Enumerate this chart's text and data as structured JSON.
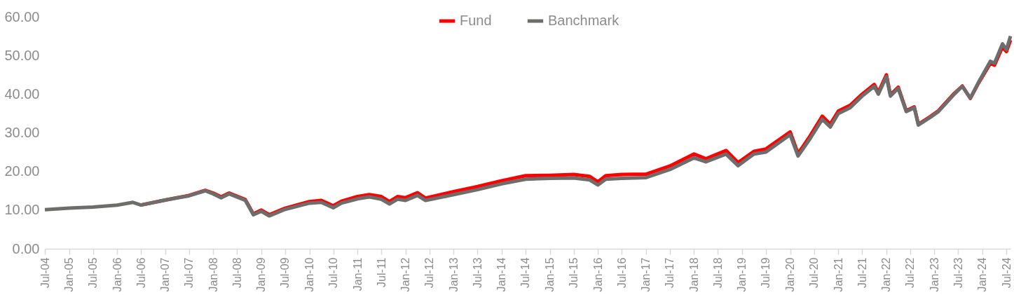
{
  "chart_data": {
    "type": "line",
    "x": [
      "2004-07",
      "2005-01",
      "2005-07",
      "2006-01",
      "2006-05",
      "2006-07",
      "2007-01",
      "2007-07",
      "2007-11",
      "2008-01",
      "2008-03",
      "2008-05",
      "2008-09",
      "2008-11",
      "2009-01",
      "2009-03",
      "2009-07",
      "2010-01",
      "2010-04",
      "2010-07",
      "2010-09",
      "2011-01",
      "2011-04",
      "2011-07",
      "2011-09",
      "2011-11",
      "2012-01",
      "2012-04",
      "2012-06",
      "2013-01",
      "2013-07",
      "2014-01",
      "2014-07",
      "2015-01",
      "2015-07",
      "2015-11",
      "2016-01",
      "2016-03",
      "2016-07",
      "2017-01",
      "2017-07",
      "2018-01",
      "2018-04",
      "2018-09",
      "2018-12",
      "2019-04",
      "2019-07",
      "2020-01",
      "2020-03",
      "2020-06",
      "2020-09",
      "2020-11",
      "2021-01",
      "2021-04",
      "2021-07",
      "2021-10",
      "2021-11",
      "2022-01",
      "2022-02",
      "2022-04",
      "2022-06",
      "2022-08",
      "2022-09",
      "2022-12",
      "2023-02",
      "2023-06",
      "2023-08",
      "2023-10",
      "2023-12",
      "2024-03",
      "2024-04",
      "2024-06",
      "2024-07",
      "2024-08"
    ],
    "series": [
      {
        "name": "Fund",
        "color": "#ff0000",
        "values": [
          null,
          null,
          null,
          null,
          null,
          11.3,
          12.6,
          13.8,
          15.1,
          14.4,
          13.4,
          14.4,
          12.7,
          9.0,
          10.0,
          8.8,
          10.5,
          12.2,
          12.5,
          11.1,
          12.3,
          13.5,
          14.0,
          13.5,
          12.2,
          13.5,
          13.2,
          14.5,
          13.1,
          14.8,
          16.1,
          17.6,
          18.9,
          19.0,
          19.2,
          18.7,
          17.3,
          18.9,
          19.2,
          19.3,
          21.4,
          24.5,
          23.3,
          25.4,
          22.3,
          25.2,
          25.8,
          30.2,
          24.6,
          29.2,
          34.3,
          32.2,
          35.6,
          37.1,
          40.0,
          42.5,
          40.4,
          45.0,
          39.8,
          41.8,
          35.7,
          36.7,
          32.2,
          34.2,
          35.7,
          40.2,
          42.1,
          38.9,
          42.8,
          48.0,
          47.5,
          52.2,
          51.0,
          54.0
        ]
      },
      {
        "name": "Banchmark",
        "color": "#6d6d6b",
        "values": [
          10.1,
          10.5,
          10.8,
          11.3,
          12.0,
          11.3,
          12.6,
          13.7,
          15.0,
          14.2,
          13.2,
          14.2,
          12.5,
          8.8,
          9.7,
          8.5,
          10.2,
          11.8,
          12.0,
          10.6,
          11.8,
          12.9,
          13.4,
          12.8,
          11.6,
          12.8,
          12.5,
          13.8,
          12.5,
          14.0,
          15.3,
          16.8,
          18.0,
          18.2,
          18.3,
          17.8,
          16.5,
          18.0,
          18.2,
          18.4,
          20.5,
          23.5,
          22.5,
          24.5,
          21.5,
          24.5,
          25.0,
          29.5,
          24.0,
          28.5,
          33.5,
          31.5,
          35.0,
          36.5,
          39.5,
          42.0,
          40.0,
          44.5,
          39.5,
          41.5,
          35.5,
          36.5,
          32.0,
          34.0,
          35.5,
          40.0,
          42.0,
          39.0,
          43.0,
          48.5,
          48.0,
          53.0,
          51.5,
          55.0
        ]
      }
    ],
    "xlim": [
      "2004-07",
      "2024-08"
    ],
    "xticks": [
      {
        "value": "2004-07",
        "label": "Jul-04"
      },
      {
        "value": "2005-01",
        "label": "Jan-05"
      },
      {
        "value": "2005-07",
        "label": "Jul-05"
      },
      {
        "value": "2006-01",
        "label": "Jan-06"
      },
      {
        "value": "2006-07",
        "label": "Jul-06"
      },
      {
        "value": "2007-01",
        "label": "Jan-07"
      },
      {
        "value": "2007-07",
        "label": "Jul-07"
      },
      {
        "value": "2008-01",
        "label": "Jan-08"
      },
      {
        "value": "2008-07",
        "label": "Jul-08"
      },
      {
        "value": "2009-01",
        "label": "Jan-09"
      },
      {
        "value": "2009-07",
        "label": "Jul-09"
      },
      {
        "value": "2010-01",
        "label": "Jan-10"
      },
      {
        "value": "2010-07",
        "label": "Jul-10"
      },
      {
        "value": "2011-01",
        "label": "Jan-11"
      },
      {
        "value": "2011-07",
        "label": "Jul-11"
      },
      {
        "value": "2012-01",
        "label": "Jan-12"
      },
      {
        "value": "2012-07",
        "label": "Jul-12"
      },
      {
        "value": "2013-01",
        "label": "Jan-13"
      },
      {
        "value": "2013-07",
        "label": "Jul-13"
      },
      {
        "value": "2014-01",
        "label": "Jan-14"
      },
      {
        "value": "2014-07",
        "label": "Jul-14"
      },
      {
        "value": "2015-01",
        "label": "Jan-15"
      },
      {
        "value": "2015-07",
        "label": "Jul-15"
      },
      {
        "value": "2016-01",
        "label": "Jan-16"
      },
      {
        "value": "2016-07",
        "label": "Jul-16"
      },
      {
        "value": "2017-01",
        "label": "Jan-17"
      },
      {
        "value": "2017-07",
        "label": "Jul-17"
      },
      {
        "value": "2018-01",
        "label": "Jan-18"
      },
      {
        "value": "2018-07",
        "label": "Jul-18"
      },
      {
        "value": "2019-01",
        "label": "Jan-19"
      },
      {
        "value": "2019-07",
        "label": "Jul-19"
      },
      {
        "value": "2020-01",
        "label": "Jan-20"
      },
      {
        "value": "2020-07",
        "label": "Jul-20"
      },
      {
        "value": "2021-01",
        "label": "Jan-21"
      },
      {
        "value": "2021-07",
        "label": "Jul-21"
      },
      {
        "value": "2022-01",
        "label": "Jan-22"
      },
      {
        "value": "2022-07",
        "label": "Jul-22"
      },
      {
        "value": "2023-01",
        "label": "Jan-23"
      },
      {
        "value": "2023-07",
        "label": "Jul-23"
      },
      {
        "value": "2024-01",
        "label": "Jan-24"
      },
      {
        "value": "2024-07",
        "label": "Jul-24"
      }
    ],
    "ylim": [
      0,
      60
    ],
    "yticks": [
      {
        "value": 0,
        "label": "0.00"
      },
      {
        "value": 10,
        "label": "10.00"
      },
      {
        "value": 20,
        "label": "20.00"
      },
      {
        "value": 30,
        "label": "30.00"
      },
      {
        "value": 40,
        "label": "40.00"
      },
      {
        "value": 50,
        "label": "50.00"
      },
      {
        "value": 60,
        "label": "60.00"
      }
    ],
    "grid": false,
    "legend": "top",
    "marker": "none",
    "line_style": "solid"
  }
}
